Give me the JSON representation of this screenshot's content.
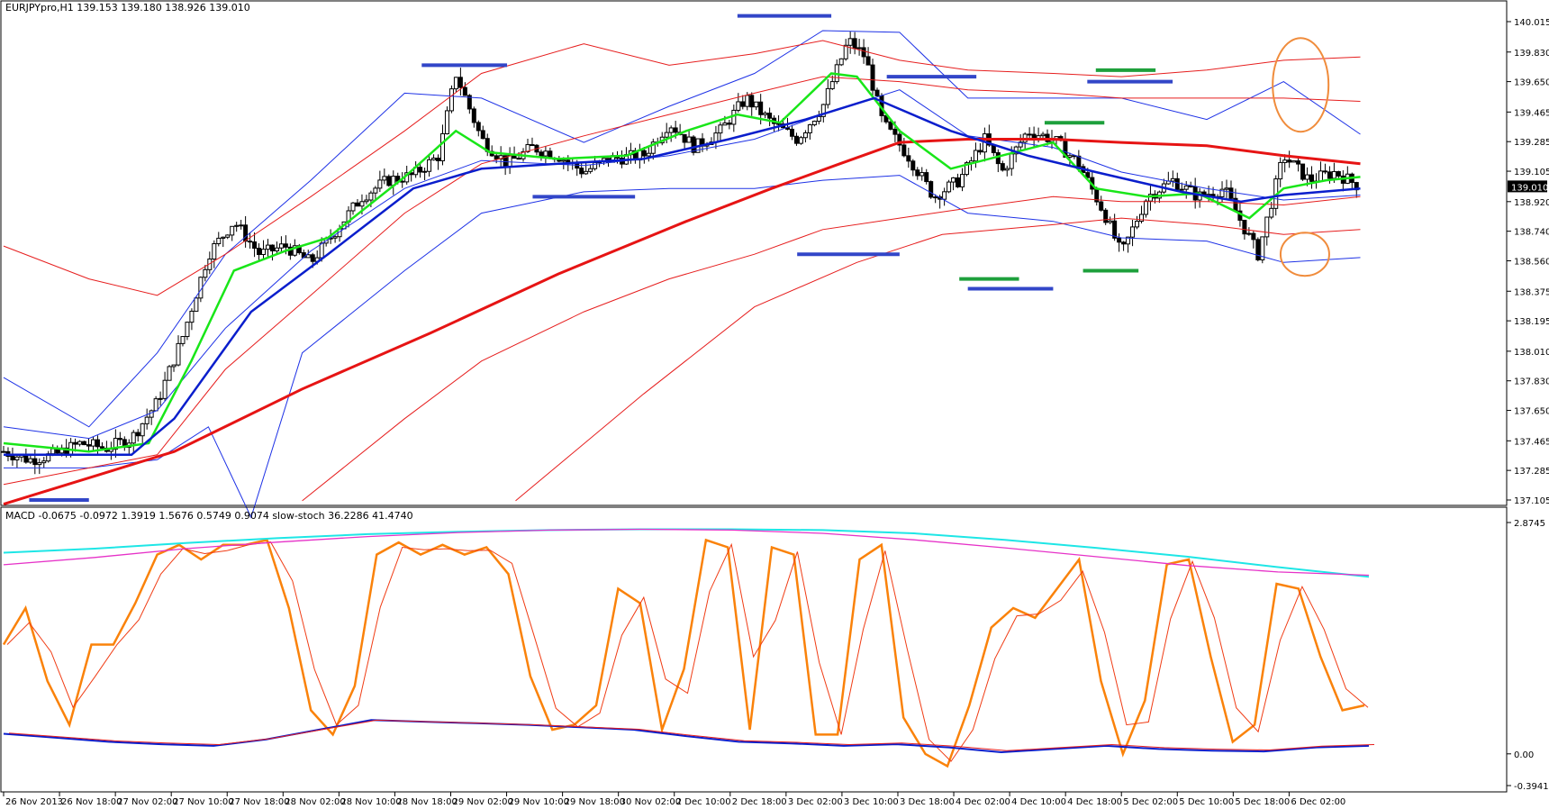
{
  "header": {
    "main": "EURJPYpro,H1  139.153 139.180 138.926 139.010",
    "indicator": "MACD -0.0675 -0.0972 1.3919 1.5676 0.5749 0.9074  slow-stoch 36.2286 41.4740"
  },
  "colors": {
    "candle": "#000000",
    "band_blue": "#1e32e6",
    "band_red": "#e61e1e",
    "ma_green": "#19e619",
    "ma_blue": "#0a1ecc",
    "ma_red": "#e61414",
    "level_blue": "#3246c8",
    "level_green": "#1ea03c",
    "circle": "#f08c3c",
    "stoch_orange": "#fa820a",
    "stoch_red": "#f03c14",
    "macd_cyan": "#1ee6e6",
    "macd_magenta": "#e632c8",
    "current_price_box": "#000000"
  },
  "chart_data": [
    {
      "type": "candlestick",
      "symbol": "EURJPYpro",
      "timeframe": "H1",
      "ohlc_last": {
        "open": 139.153,
        "high": 139.18,
        "low": 138.926,
        "close": 139.01
      },
      "current_price": "139.010",
      "y_ticks": [
        "140.015",
        "139.830",
        "139.650",
        "139.465",
        "139.285",
        "139.105",
        "138.920",
        "138.740",
        "138.560",
        "138.375",
        "138.195",
        "138.010",
        "137.830",
        "137.650",
        "137.465",
        "137.285",
        "137.105"
      ],
      "ylim": [
        137.105,
        140.015
      ],
      "x_ticks": [
        "26 Nov 2013",
        "26 Nov 18:00",
        "27 Nov 02:00",
        "27 Nov 10:00",
        "27 Nov 18:00",
        "28 Nov 02:00",
        "28 Nov 10:00",
        "28 Nov 18:00",
        "29 Nov 02:00",
        "29 Nov 10:00",
        "29 Nov 18:00",
        "30 Nov 02:00",
        "2 Dec 10:00",
        "2 Dec 18:00",
        "3 Dec 02:00",
        "3 Dec 10:00",
        "3 Dec 18:00",
        "4 Dec 02:00",
        "4 Dec 10:00",
        "4 Dec 18:00",
        "5 Dec 02:00",
        "5 Dec 10:00",
        "5 Dec 18:00",
        "6 Dec 02:00"
      ],
      "close_path": [
        [
          0,
          137.4
        ],
        [
          6,
          137.35
        ],
        [
          12,
          137.38
        ],
        [
          18,
          137.45
        ],
        [
          24,
          137.42
        ],
        [
          30,
          137.48
        ],
        [
          36,
          137.7
        ],
        [
          42,
          138.1
        ],
        [
          48,
          138.6
        ],
        [
          54,
          138.8
        ],
        [
          60,
          138.6
        ],
        [
          66,
          138.65
        ],
        [
          72,
          138.55
        ],
        [
          78,
          138.75
        ],
        [
          84,
          138.95
        ],
        [
          90,
          139.05
        ],
        [
          96,
          139.08
        ],
        [
          102,
          139.2
        ],
        [
          106,
          139.7
        ],
        [
          112,
          139.3
        ],
        [
          118,
          139.15
        ],
        [
          124,
          139.25
        ],
        [
          130,
          139.2
        ],
        [
          136,
          139.1
        ],
        [
          142,
          139.18
        ],
        [
          150,
          139.2
        ],
        [
          156,
          139.4
        ],
        [
          162,
          139.25
        ],
        [
          168,
          139.35
        ],
        [
          174,
          139.55
        ],
        [
          180,
          139.4
        ],
        [
          186,
          139.3
        ],
        [
          192,
          139.5
        ],
        [
          198,
          139.9
        ],
        [
          202,
          139.8
        ],
        [
          206,
          139.4
        ],
        [
          212,
          139.2
        ],
        [
          218,
          138.95
        ],
        [
          224,
          139.05
        ],
        [
          230,
          139.3
        ],
        [
          234,
          139.1
        ],
        [
          240,
          139.35
        ],
        [
          246,
          139.3
        ],
        [
          252,
          139.15
        ],
        [
          258,
          138.85
        ],
        [
          262,
          138.6
        ],
        [
          268,
          138.95
        ],
        [
          274,
          139.05
        ],
        [
          280,
          138.95
        ],
        [
          286,
          139.0
        ],
        [
          290,
          138.8
        ],
        [
          294,
          138.6
        ],
        [
          300,
          139.2
        ],
        [
          306,
          139.05
        ],
        [
          312,
          139.1
        ],
        [
          318,
          139.01
        ]
      ],
      "overlays": {
        "band_upper_blue": [
          [
            0,
            137.85
          ],
          [
            20,
            137.55
          ],
          [
            36,
            138.0
          ],
          [
            52,
            138.6
          ],
          [
            72,
            139.05
          ],
          [
            94,
            139.58
          ],
          [
            112,
            139.55
          ],
          [
            136,
            139.28
          ],
          [
            156,
            139.5
          ],
          [
            176,
            139.7
          ],
          [
            192,
            139.96
          ],
          [
            210,
            139.95
          ],
          [
            226,
            139.55
          ],
          [
            246,
            139.55
          ],
          [
            262,
            139.55
          ],
          [
            282,
            139.42
          ],
          [
            300,
            139.65
          ],
          [
            318,
            139.33
          ]
        ],
        "band_middle_blue": [
          [
            0,
            137.55
          ],
          [
            20,
            137.48
          ],
          [
            36,
            137.65
          ],
          [
            52,
            138.15
          ],
          [
            72,
            138.62
          ],
          [
            94,
            139.0
          ],
          [
            112,
            139.17
          ],
          [
            136,
            139.14
          ],
          [
            156,
            139.2
          ],
          [
            176,
            139.3
          ],
          [
            192,
            139.45
          ],
          [
            210,
            139.6
          ],
          [
            226,
            139.32
          ],
          [
            246,
            139.25
          ],
          [
            262,
            139.1
          ],
          [
            282,
            139.0
          ],
          [
            300,
            138.93
          ],
          [
            318,
            138.96
          ]
        ],
        "band_lower_blue": [
          [
            0,
            137.3
          ],
          [
            20,
            137.3
          ],
          [
            36,
            137.35
          ],
          [
            48,
            137.55
          ],
          [
            58,
            137.0
          ],
          [
            70,
            138.0
          ],
          [
            94,
            138.5
          ],
          [
            112,
            138.85
          ],
          [
            136,
            138.98
          ],
          [
            156,
            139.0
          ],
          [
            176,
            139.0
          ],
          [
            192,
            139.05
          ],
          [
            210,
            139.08
          ],
          [
            226,
            138.85
          ],
          [
            246,
            138.8
          ],
          [
            262,
            138.7
          ],
          [
            282,
            138.68
          ],
          [
            300,
            138.55
          ],
          [
            318,
            138.58
          ]
        ],
        "band_upper_red": [
          [
            0,
            138.65
          ],
          [
            20,
            138.45
          ],
          [
            36,
            138.35
          ],
          [
            52,
            138.6
          ],
          [
            72,
            138.95
          ],
          [
            94,
            139.35
          ],
          [
            112,
            139.7
          ],
          [
            136,
            139.88
          ],
          [
            156,
            139.75
          ],
          [
            176,
            139.82
          ],
          [
            192,
            139.9
          ],
          [
            210,
            139.78
          ],
          [
            226,
            139.72
          ],
          [
            246,
            139.7
          ],
          [
            262,
            139.68
          ],
          [
            282,
            139.72
          ],
          [
            300,
            139.78
          ],
          [
            318,
            139.8
          ]
        ],
        "band_inner_red": [
          [
            0,
            137.2
          ],
          [
            36,
            137.38
          ],
          [
            52,
            137.9
          ],
          [
            72,
            138.35
          ],
          [
            94,
            138.85
          ],
          [
            112,
            139.15
          ],
          [
            136,
            139.32
          ],
          [
            156,
            139.45
          ],
          [
            176,
            139.58
          ],
          [
            192,
            139.68
          ],
          [
            210,
            139.65
          ],
          [
            226,
            139.6
          ],
          [
            246,
            139.58
          ],
          [
            262,
            139.55
          ],
          [
            282,
            139.55
          ],
          [
            300,
            139.55
          ],
          [
            318,
            139.53
          ]
        ],
        "ma_red": [
          [
            0,
            137.08
          ],
          [
            40,
            137.4
          ],
          [
            70,
            137.78
          ],
          [
            100,
            138.12
          ],
          [
            130,
            138.48
          ],
          [
            160,
            138.8
          ],
          [
            180,
            139.0
          ],
          [
            196,
            139.15
          ],
          [
            210,
            139.28
          ],
          [
            226,
            139.3
          ],
          [
            246,
            139.3
          ],
          [
            262,
            139.28
          ],
          [
            282,
            139.26
          ],
          [
            300,
            139.2
          ],
          [
            318,
            139.15
          ]
        ],
        "band_lower_red": [
          [
            70,
            137.1
          ],
          [
            94,
            137.6
          ],
          [
            112,
            137.95
          ],
          [
            136,
            138.25
          ],
          [
            156,
            138.45
          ],
          [
            176,
            138.6
          ],
          [
            192,
            138.75
          ],
          [
            210,
            138.82
          ],
          [
            226,
            138.88
          ],
          [
            246,
            138.95
          ],
          [
            262,
            138.92
          ],
          [
            282,
            138.92
          ],
          [
            300,
            138.9
          ],
          [
            318,
            138.95
          ]
        ],
        "band_bottom_red": [
          [
            120,
            137.1
          ],
          [
            150,
            137.75
          ],
          [
            176,
            138.28
          ],
          [
            200,
            138.55
          ],
          [
            220,
            138.72
          ],
          [
            246,
            138.78
          ],
          [
            262,
            138.82
          ],
          [
            282,
            138.78
          ],
          [
            300,
            138.72
          ],
          [
            318,
            138.75
          ]
        ],
        "ma_green": [
          [
            0,
            137.45
          ],
          [
            20,
            137.4
          ],
          [
            34,
            137.45
          ],
          [
            44,
            137.95
          ],
          [
            54,
            138.5
          ],
          [
            66,
            138.62
          ],
          [
            76,
            138.7
          ],
          [
            94,
            139.07
          ],
          [
            106,
            139.35
          ],
          [
            114,
            139.22
          ],
          [
            130,
            139.18
          ],
          [
            146,
            139.2
          ],
          [
            160,
            139.35
          ],
          [
            172,
            139.45
          ],
          [
            182,
            139.4
          ],
          [
            194,
            139.7
          ],
          [
            200,
            139.68
          ],
          [
            210,
            139.35
          ],
          [
            222,
            139.12
          ],
          [
            234,
            139.2
          ],
          [
            246,
            139.28
          ],
          [
            256,
            139.0
          ],
          [
            268,
            138.95
          ],
          [
            280,
            138.97
          ],
          [
            292,
            138.82
          ],
          [
            300,
            139.0
          ],
          [
            310,
            139.05
          ],
          [
            318,
            139.07
          ]
        ],
        "ma_blue": [
          [
            0,
            137.38
          ],
          [
            30,
            137.38
          ],
          [
            40,
            137.6
          ],
          [
            58,
            138.25
          ],
          [
            76,
            138.6
          ],
          [
            96,
            139.0
          ],
          [
            112,
            139.12
          ],
          [
            130,
            139.15
          ],
          [
            150,
            139.18
          ],
          [
            170,
            139.3
          ],
          [
            188,
            139.42
          ],
          [
            204,
            139.55
          ],
          [
            222,
            139.35
          ],
          [
            240,
            139.2
          ],
          [
            256,
            139.1
          ],
          [
            276,
            138.98
          ],
          [
            290,
            138.92
          ],
          [
            300,
            138.96
          ],
          [
            318,
            139.0
          ]
        ]
      },
      "levels_blue": [
        [
          6,
          20,
          137.105
        ],
        [
          98,
          118,
          139.75
        ],
        [
          172,
          194,
          140.05
        ],
        [
          124,
          148,
          138.95
        ],
        [
          207,
          228,
          139.68
        ],
        [
          186,
          210,
          138.6
        ],
        [
          226,
          246,
          138.39
        ],
        [
          254,
          274,
          139.65
        ]
      ],
      "levels_green": [
        [
          224,
          238,
          138.45
        ],
        [
          244,
          258,
          139.4
        ],
        [
          256,
          270,
          139.72
        ],
        [
          253,
          266,
          138.5
        ]
      ],
      "annotations": [
        "ellipse near 139.6 at right edge",
        "circle near 138.6 at right edge"
      ]
    },
    {
      "type": "line",
      "name": "MACD / slow-stoch",
      "y_ticks": [
        "2.8745",
        "0.00",
        "-0.3941"
      ],
      "ylim": [
        -0.3941,
        2.8745
      ],
      "series": [
        {
          "name": "slow-stoch %K",
          "color": "orange",
          "values": [
            55,
            70,
            40,
            22,
            55,
            55,
            72,
            92,
            96,
            90,
            96,
            96,
            98,
            70,
            28,
            18,
            38,
            92,
            97,
            92,
            96,
            92,
            95,
            84,
            42,
            20,
            22,
            30,
            78,
            72,
            20,
            45,
            98,
            95,
            20,
            95,
            92,
            18,
            18,
            90,
            96,
            25,
            10,
            5,
            30,
            62,
            70,
            66,
            78,
            90,
            40,
            10,
            32,
            88,
            90,
            50,
            15,
            22,
            80,
            78,
            50,
            28,
            30
          ]
        },
        {
          "name": "MACD main",
          "color": "cyan",
          "values": [
            2.5,
            2.55,
            2.62,
            2.68,
            2.73,
            2.76,
            2.78,
            2.79,
            2.79,
            2.78,
            2.74,
            2.66,
            2.56,
            2.45,
            2.32,
            2.2
          ]
        },
        {
          "name": "MACD signal",
          "color": "magenta",
          "values": [
            2.35,
            2.44,
            2.55,
            2.63,
            2.7,
            2.75,
            2.78,
            2.79,
            2.78,
            2.74,
            2.66,
            2.56,
            2.45,
            2.34,
            2.26,
            2.22
          ]
        }
      ]
    }
  ]
}
